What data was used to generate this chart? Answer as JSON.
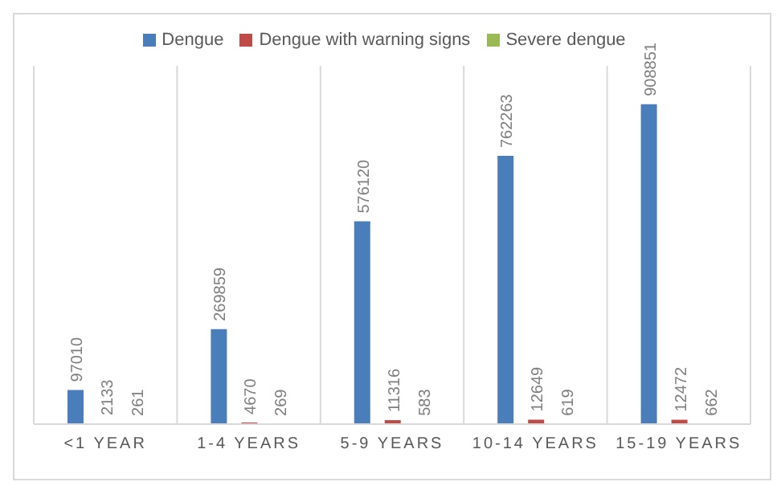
{
  "chart_data": {
    "type": "bar",
    "categories": [
      "<1 YEAR",
      "1-4 YEARS",
      "5-9 YEARS",
      "10-14 YEARS",
      "15-19 YEARS"
    ],
    "series": [
      {
        "name": "Dengue",
        "color": "#4a7ebb",
        "values": [
          97010,
          269859,
          576120,
          762263,
          908851
        ]
      },
      {
        "name": "Dengue with warning signs",
        "color": "#be4b48",
        "values": [
          2133,
          4670,
          11316,
          12649,
          12472
        ]
      },
      {
        "name": "Severe dengue",
        "color": "#98b954",
        "values": [
          261,
          269,
          583,
          619,
          662
        ]
      }
    ],
    "data_labels": true,
    "grid": "x",
    "legend": "top",
    "tick_labels": "x"
  }
}
